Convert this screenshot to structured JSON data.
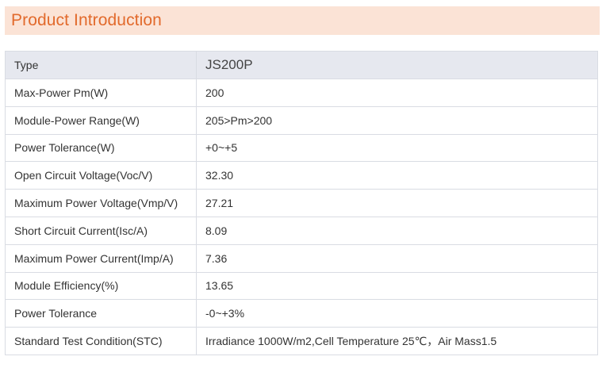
{
  "section": {
    "title": "Product Introduction"
  },
  "spec_table": {
    "header": {
      "label": "Type",
      "value": "JS200P"
    },
    "rows": [
      {
        "label": "Max-Power Pm(W)",
        "value": "200"
      },
      {
        "label": "Module-Power Range(W)",
        "value": "205>Pm>200"
      },
      {
        "label": "Power Tolerance(W)",
        "value": "+0~+5"
      },
      {
        "label": "Open Circuit Voltage(Voc/V)",
        "value": "32.30"
      },
      {
        "label": "Maximum Power Voltage(Vmp/V)",
        "value": "27.21"
      },
      {
        "label": "Short Circuit Current(Isc/A)",
        "value": "8.09"
      },
      {
        "label": "Maximum Power Current(Imp/A)",
        "value": "7.36"
      },
      {
        "label": "Module Efficiency(%)",
        "value": "13.65"
      },
      {
        "label": "Power Tolerance",
        "value": "-0~+3%"
      },
      {
        "label": "Standard Test Condition(STC)",
        "value": "Irradiance 1000W/m2,Cell Temperature 25℃，Air Mass1.5"
      }
    ]
  },
  "colors": {
    "header_bg": "#fbe3d6",
    "title_text": "#e26a2c",
    "table_head_bg": "#e6e8ef",
    "table_border": "#d9dce3"
  }
}
